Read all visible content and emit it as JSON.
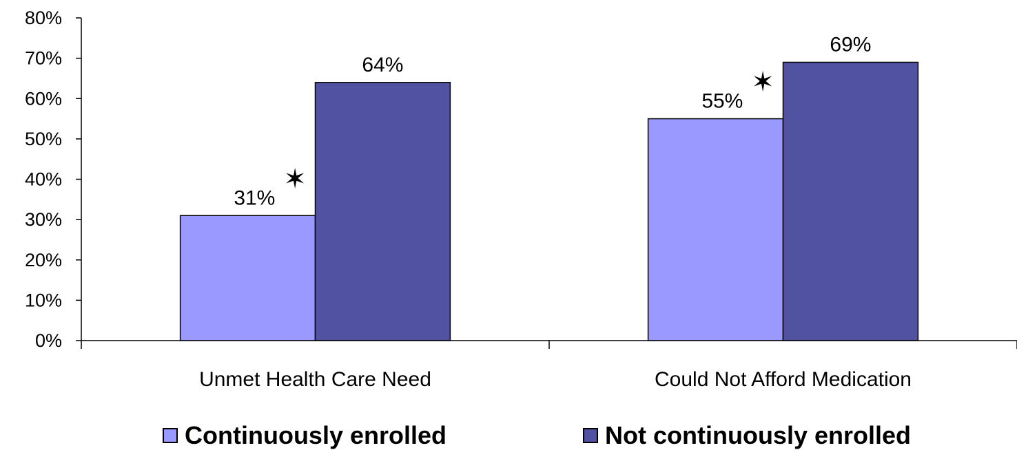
{
  "chart_data": {
    "type": "bar",
    "categories": [
      "Unmet Health Care Need",
      "Could Not Afford Medication"
    ],
    "series": [
      {
        "name": "Continuously enrolled",
        "values": [
          31,
          55
        ],
        "color": "#9999FF",
        "data_labels": [
          "31%",
          "55%"
        ]
      },
      {
        "name": "Not continuously enrolled",
        "values": [
          64,
          69
        ],
        "color": "#5252A3",
        "data_labels": [
          "64%",
          "69%"
        ]
      }
    ],
    "ylim": [
      0,
      80
    ],
    "y_ticks": [
      "0%",
      "10%",
      "20%",
      "30%",
      "40%",
      "50%",
      "60%",
      "70%",
      "80%"
    ],
    "annotations": [
      {
        "symbol": "✶",
        "category": "Unmet Health Care Need",
        "series": "Continuously enrolled"
      },
      {
        "symbol": "✶",
        "category": "Could Not Afford Medication",
        "series": "Continuously enrolled"
      }
    ],
    "grid": false,
    "legend_position": "bottom"
  }
}
